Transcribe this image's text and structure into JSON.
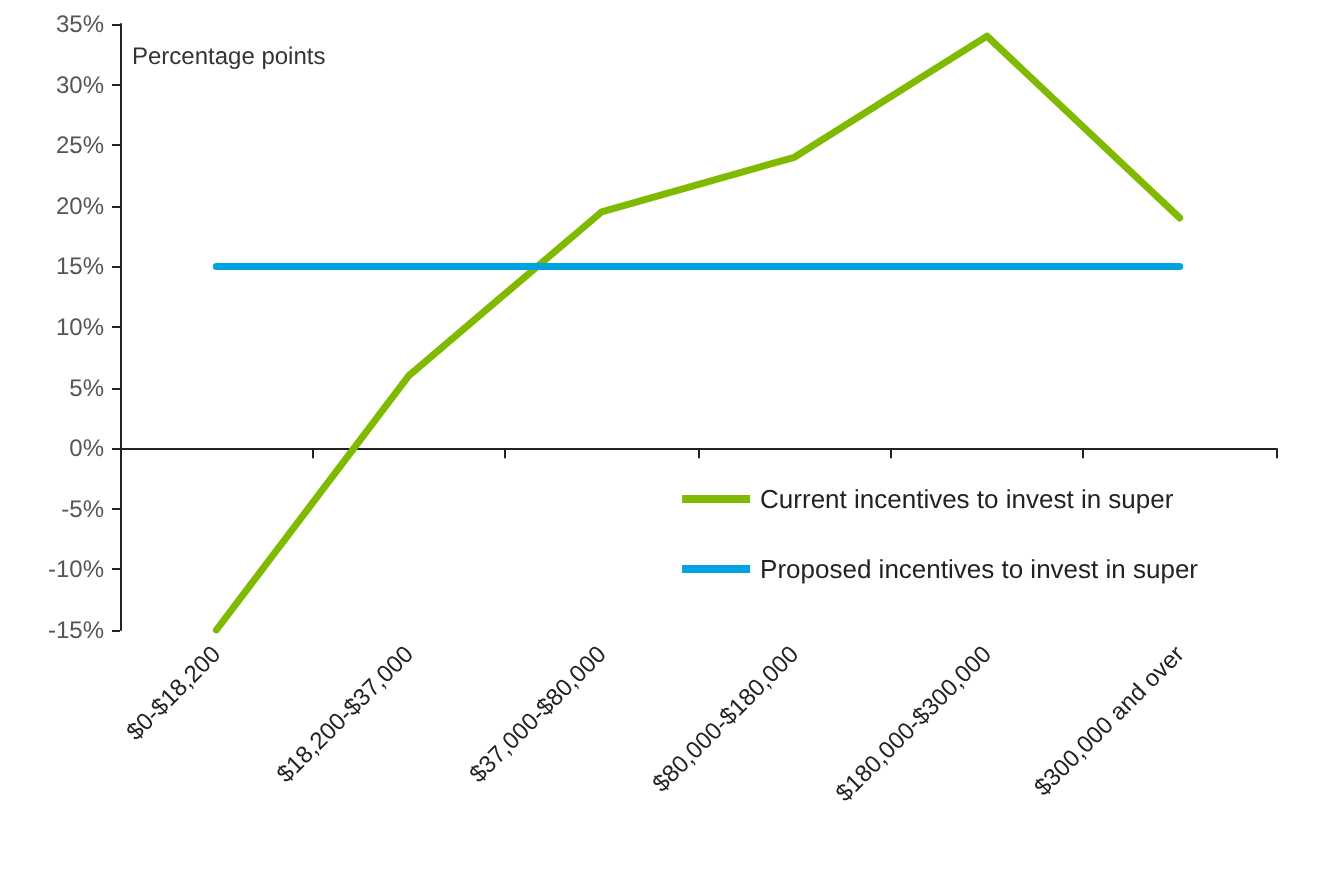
{
  "chart_data": {
    "type": "line",
    "ylabel": "Percentage points",
    "categories": [
      "$0-$18,200",
      "$18,200-$37,000",
      "$37,000-$80,000",
      "$80,000-$180,000",
      "$180,000-$300,000",
      "$300,000 and over"
    ],
    "series": [
      {
        "name": "Current incentives to invest in super",
        "color": "#7fba00",
        "values": [
          -15,
          6,
          19.5,
          24,
          34,
          19
        ]
      },
      {
        "name": "Proposed incentives to invest in super",
        "color": "#00a2e0",
        "values": [
          15,
          15,
          15,
          15,
          15,
          15
        ]
      }
    ],
    "ylim": [
      -15,
      35
    ],
    "yticks": [
      {
        "value": -15,
        "label": "-15%"
      },
      {
        "value": -10,
        "label": "-10%"
      },
      {
        "value": -5,
        "label": "-5%"
      },
      {
        "value": 0,
        "label": "0%"
      },
      {
        "value": 5,
        "label": "5%"
      },
      {
        "value": 10,
        "label": "10%"
      },
      {
        "value": 15,
        "label": "15%"
      },
      {
        "value": 20,
        "label": "20%"
      },
      {
        "value": 25,
        "label": "25%"
      },
      {
        "value": 30,
        "label": "30%"
      },
      {
        "value": 35,
        "label": "35%"
      }
    ],
    "legend": "bottom right",
    "marker": "none",
    "line_style": "solid"
  }
}
